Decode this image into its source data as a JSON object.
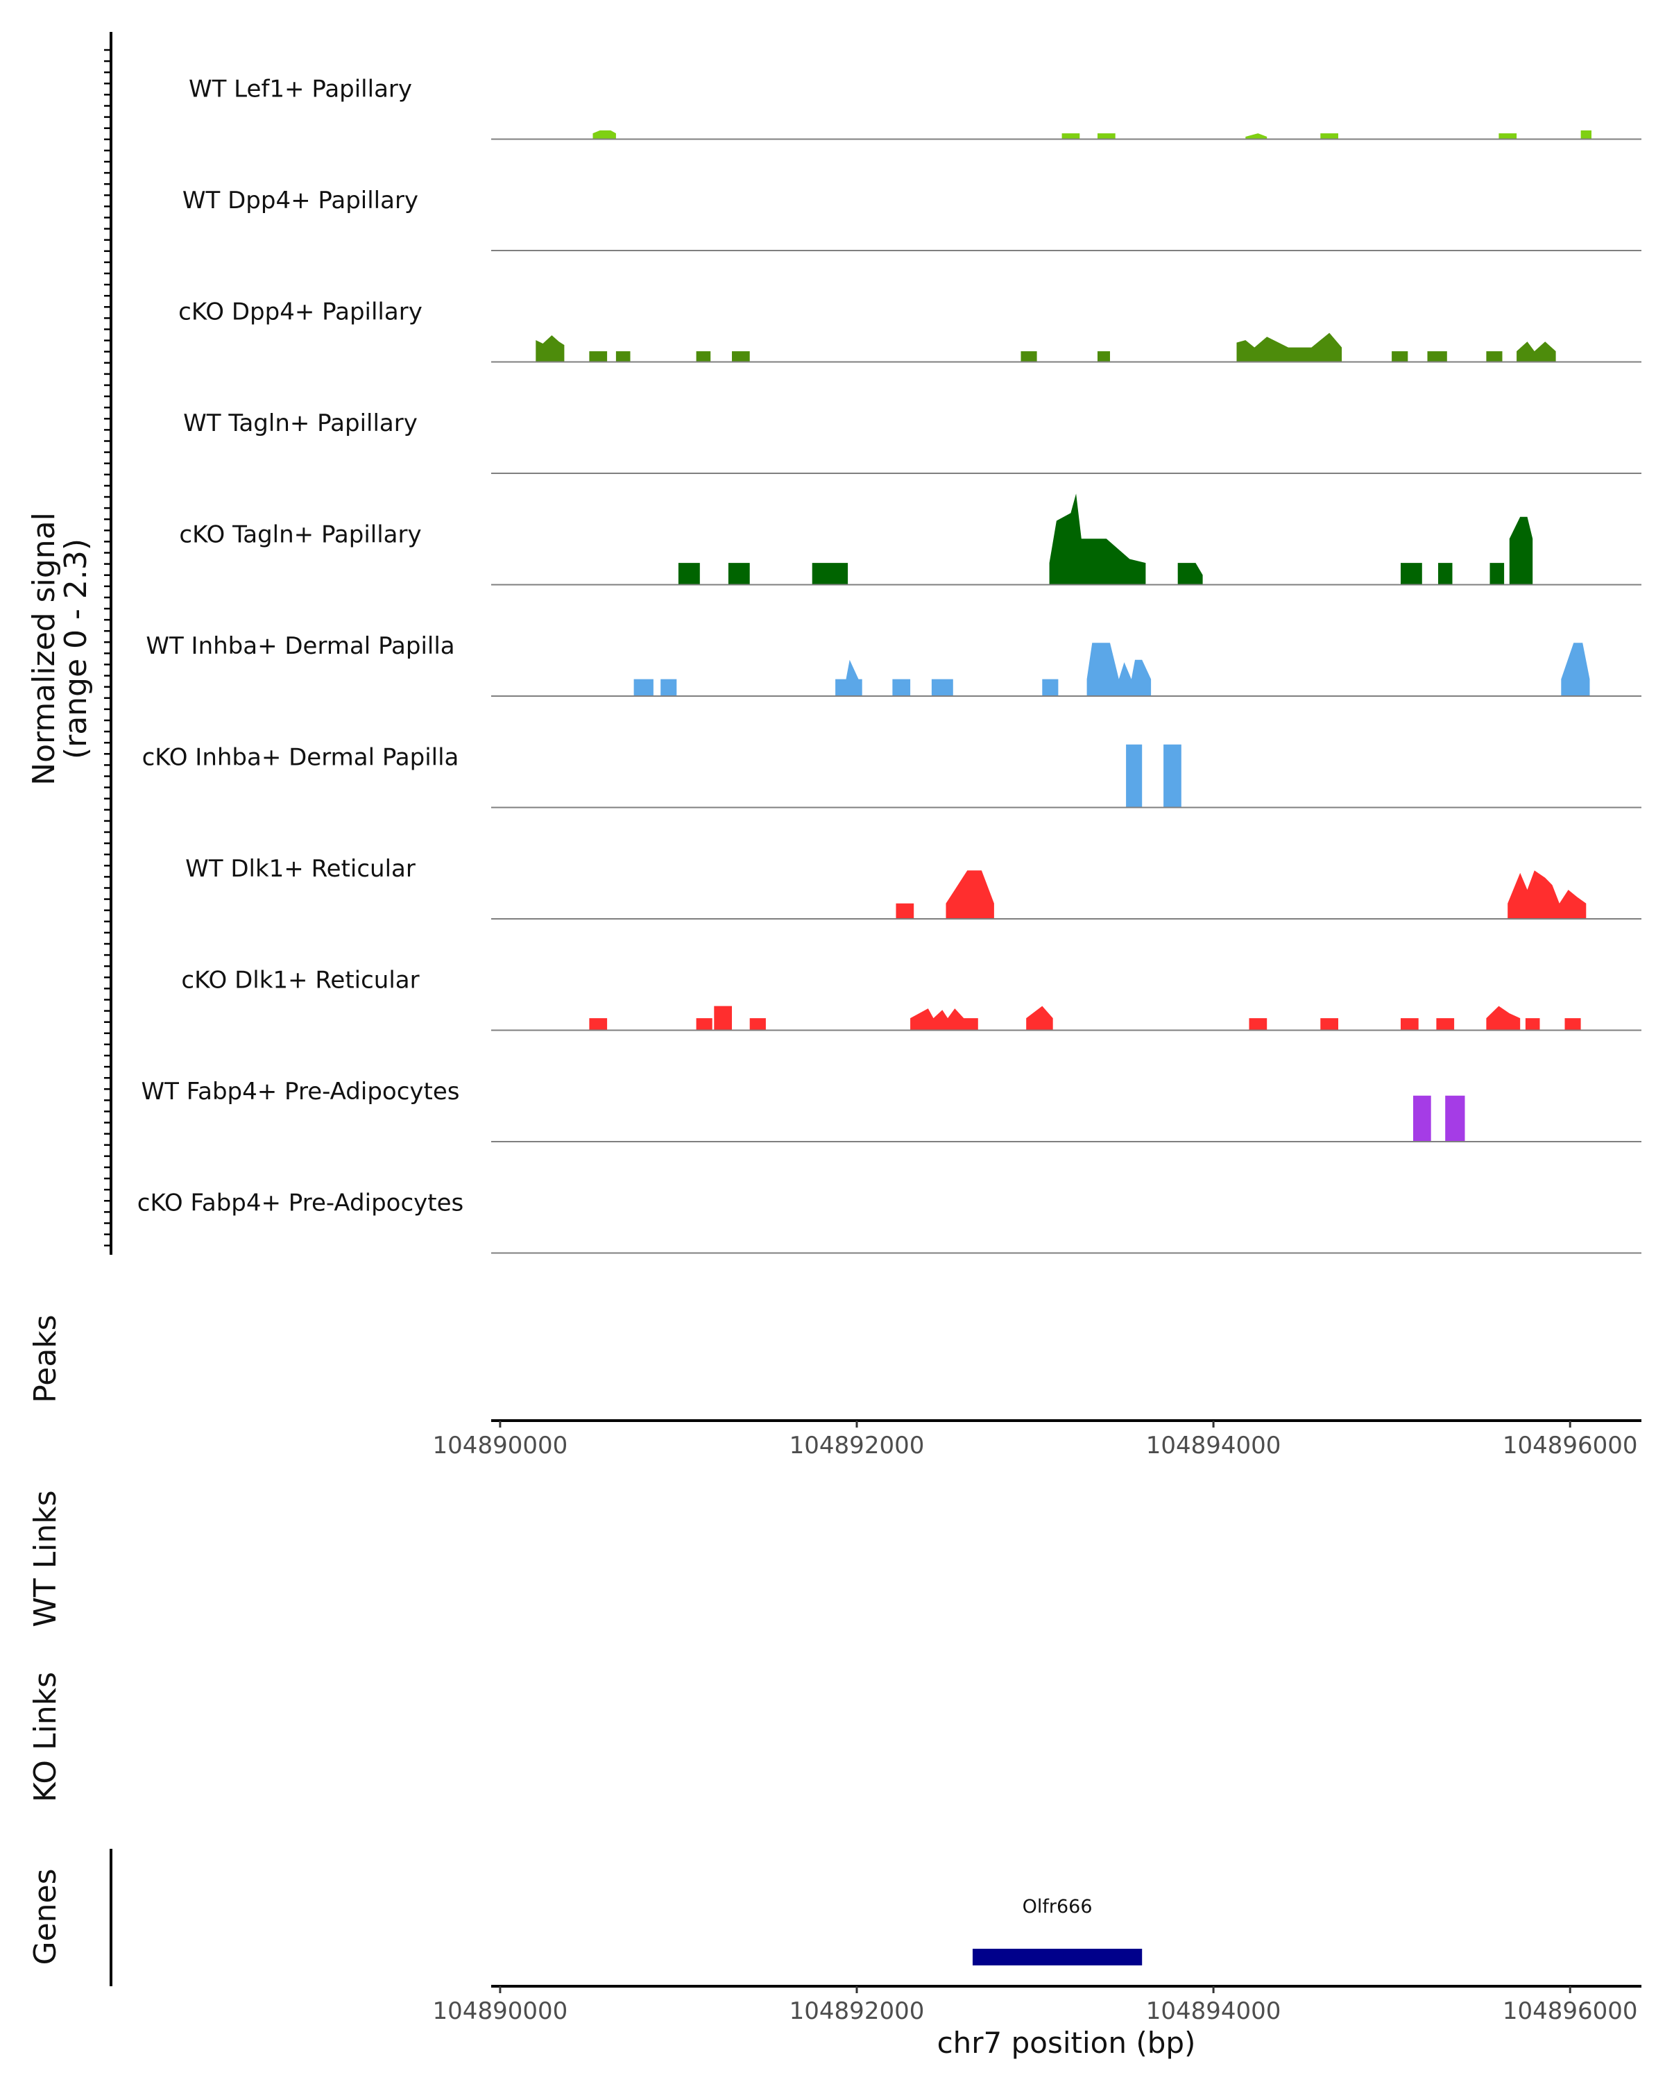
{
  "chart_data": {
    "type": "area",
    "title": "",
    "chromosome": "chr7",
    "xlabel": "chr7 position (bp)",
    "ylabel": "Normalized signal\n(range 0 - 2.3)",
    "ylabel_lines": [
      "Normalized signal",
      "(range 0 - 2.3)"
    ],
    "ylim": [
      0,
      2.3
    ],
    "xlim": [
      104889950,
      104896400
    ],
    "x_ticks": [
      104890000,
      104892000,
      104894000,
      104896000
    ],
    "x_tick_labels": [
      "104890000",
      "104892000",
      "104894000",
      "104896000"
    ],
    "track_titles": {
      "peaks": "Peaks",
      "wt_links": "WT Links",
      "ko_links": "KO Links",
      "genes": "Genes"
    },
    "genes": [
      {
        "name": "Olfr666",
        "start": 104892650,
        "end": 104893600,
        "strand": "-",
        "color": "#00008B"
      }
    ],
    "series": [
      {
        "name": "WT Lef1+ Papillary",
        "color": "#7FD012",
        "segments": [
          {
            "x": [
              104890520,
              104890560,
              104890620,
              104890650
            ],
            "y": [
              0.12,
              0.18,
              0.18,
              0.12
            ]
          },
          {
            "x": [
              104893150,
              104893250
            ],
            "y": [
              0.12,
              0.12
            ]
          },
          {
            "x": [
              104893350,
              104893450
            ],
            "y": [
              0.12,
              0.12
            ]
          },
          {
            "x": [
              104894180,
              104894250,
              104894300
            ],
            "y": [
              0.05,
              0.12,
              0.05
            ]
          },
          {
            "x": [
              104894600,
              104894700
            ],
            "y": [
              0.12,
              0.12
            ]
          },
          {
            "x": [
              104895600,
              104895700
            ],
            "y": [
              0.12,
              0.12
            ]
          },
          {
            "x": [
              104896060,
              104896120
            ],
            "y": [
              0.18,
              0.18
            ]
          }
        ]
      },
      {
        "name": "WT Dpp4+ Papillary",
        "color": "#5A9C11",
        "segments": []
      },
      {
        "name": "cKO Dpp4+ Papillary",
        "color": "#4D8C0B",
        "segments": [
          {
            "x": [
              104890200,
              104890240,
              104890290,
              104890330,
              104890360
            ],
            "y": [
              0.45,
              0.38,
              0.55,
              0.42,
              0.35
            ]
          },
          {
            "x": [
              104890500,
              104890600
            ],
            "y": [
              0.22,
              0.22
            ]
          },
          {
            "x": [
              104890650,
              104890730
            ],
            "y": [
              0.22,
              0.22
            ]
          },
          {
            "x": [
              104891100,
              104891180
            ],
            "y": [
              0.22,
              0.22
            ]
          },
          {
            "x": [
              104891300,
              104891400
            ],
            "y": [
              0.22,
              0.22
            ]
          },
          {
            "x": [
              104892920,
              104893010
            ],
            "y": [
              0.22,
              0.22
            ]
          },
          {
            "x": [
              104893350,
              104893420
            ],
            "y": [
              0.22,
              0.22
            ]
          },
          {
            "x": [
              104894130,
              104894180,
              104894230,
              104894300,
              104894420,
              104894550,
              104894650,
              104894720
            ],
            "y": [
              0.4,
              0.45,
              0.3,
              0.52,
              0.3,
              0.3,
              0.6,
              0.3
            ]
          },
          {
            "x": [
              104895000,
              104895090
            ],
            "y": [
              0.22,
              0.22
            ]
          },
          {
            "x": [
              104895200,
              104895310
            ],
            "y": [
              0.22,
              0.22
            ]
          },
          {
            "x": [
              104895530,
              104895620
            ],
            "y": [
              0.22,
              0.22
            ]
          },
          {
            "x": [
              104895700,
              104895760,
              104895800,
              104895860,
              104895920
            ],
            "y": [
              0.22,
              0.42,
              0.22,
              0.42,
              0.22
            ]
          }
        ]
      },
      {
        "name": "WT Tagln+ Papillary",
        "color": "#2E7D0A",
        "segments": []
      },
      {
        "name": "cKO Tagln+ Papillary",
        "color": "#006400",
        "segments": [
          {
            "x": [
              104891000,
              104891120
            ],
            "y": [
              0.45,
              0.45
            ]
          },
          {
            "x": [
              104891280,
              104891400
            ],
            "y": [
              0.45,
              0.45
            ]
          },
          {
            "x": [
              104891750,
              104891950
            ],
            "y": [
              0.45,
              0.45
            ]
          },
          {
            "x": [
              104893080,
              104893120,
              104893200,
              104893230,
              104893260,
              104893400,
              104893530,
              104893620
            ],
            "y": [
              0.45,
              1.32,
              1.48,
              1.88,
              0.95,
              0.95,
              0.53,
              0.45
            ]
          },
          {
            "x": [
              104893800,
              104893900,
              104893940
            ],
            "y": [
              0.45,
              0.45,
              0.2
            ]
          },
          {
            "x": [
              104895050,
              104895170
            ],
            "y": [
              0.45,
              0.45
            ]
          },
          {
            "x": [
              104895260,
              104895340
            ],
            "y": [
              0.45,
              0.45
            ]
          },
          {
            "x": [
              104895550,
              104895630
            ],
            "y": [
              0.45,
              0.45
            ]
          },
          {
            "x": [
              104895660,
              104895720,
              104895760,
              104895790
            ],
            "y": [
              0.95,
              1.4,
              1.4,
              0.95
            ]
          }
        ]
      },
      {
        "name": "WT Inhba+ Dermal Papilla",
        "color": "#5BA7E8",
        "segments": [
          {
            "x": [
              104890750,
              104890860
            ],
            "y": [
              0.35,
              0.35
            ]
          },
          {
            "x": [
              104890900,
              104890990
            ],
            "y": [
              0.35,
              0.35
            ]
          },
          {
            "x": [
              104891880,
              104891940,
              104891960,
              104892010,
              104892030
            ],
            "y": [
              0.35,
              0.35,
              0.75,
              0.35,
              0.35
            ]
          },
          {
            "x": [
              104892200,
              104892300
            ],
            "y": [
              0.35,
              0.35
            ]
          },
          {
            "x": [
              104892420,
              104892540
            ],
            "y": [
              0.35,
              0.35
            ]
          },
          {
            "x": [
              104893040,
              104893130
            ],
            "y": [
              0.35,
              0.35
            ]
          },
          {
            "x": [
              104893290,
              104893320,
              104893420,
              104893470,
              104893500,
              104893540,
              104893560,
              104893600,
              104893650
            ],
            "y": [
              0.35,
              1.1,
              1.1,
              0.35,
              0.7,
              0.35,
              0.75,
              0.75,
              0.35
            ]
          },
          {
            "x": [
              104895950,
              104896020,
              104896070,
              104896110
            ],
            "y": [
              0.35,
              1.1,
              1.1,
              0.35
            ]
          }
        ]
      },
      {
        "name": "cKO Inhba+ Dermal Papilla",
        "color": "#5BA7E8",
        "segments": [
          {
            "x": [
              104893510,
              104893600
            ],
            "y": [
              1.3,
              1.3
            ]
          },
          {
            "x": [
              104893720,
              104893820
            ],
            "y": [
              1.3,
              1.3
            ]
          }
        ]
      },
      {
        "name": "WT Dlk1+ Reticular",
        "color": "#FF2E2E",
        "segments": [
          {
            "x": [
              104892220,
              104892320
            ],
            "y": [
              0.32,
              0.32
            ]
          },
          {
            "x": [
              104892500,
              104892550,
              104892620,
              104892700,
              104892770
            ],
            "y": [
              0.32,
              0.6,
              1.0,
              1.0,
              0.32
            ]
          },
          {
            "x": [
              104895650,
              104895720,
              104895760,
              104895800,
              104895860,
              104895900,
              104895940,
              104895990,
              104896040,
              104896090
            ],
            "y": [
              0.32,
              0.95,
              0.6,
              1.0,
              0.85,
              0.7,
              0.32,
              0.6,
              0.45,
              0.32
            ]
          }
        ]
      },
      {
        "name": "cKO Dlk1+ Reticular",
        "color": "#FF2E2E",
        "segments": [
          {
            "x": [
              104890500,
              104890600
            ],
            "y": [
              0.25,
              0.25
            ]
          },
          {
            "x": [
              104891100,
              104891190
            ],
            "y": [
              0.25,
              0.25
            ]
          },
          {
            "x": [
              104891200,
              104891300
            ],
            "y": [
              0.5,
              0.5
            ]
          },
          {
            "x": [
              104891400,
              104891490
            ],
            "y": [
              0.25,
              0.25
            ]
          },
          {
            "x": [
              104892300,
              104892400,
              104892430,
              104892480,
              104892510,
              104892550,
              104892600,
              104892680
            ],
            "y": [
              0.25,
              0.45,
              0.25,
              0.42,
              0.25,
              0.45,
              0.25,
              0.25
            ]
          },
          {
            "x": [
              104892950,
              104893040,
              104893100
            ],
            "y": [
              0.25,
              0.5,
              0.25
            ]
          },
          {
            "x": [
              104894200,
              104894300
            ],
            "y": [
              0.25,
              0.25
            ]
          },
          {
            "x": [
              104894600,
              104894700
            ],
            "y": [
              0.25,
              0.25
            ]
          },
          {
            "x": [
              104895050,
              104895150
            ],
            "y": [
              0.25,
              0.25
            ]
          },
          {
            "x": [
              104895250,
              104895350
            ],
            "y": [
              0.25,
              0.25
            ]
          },
          {
            "x": [
              104895530,
              104895600,
              104895660,
              104895720
            ],
            "y": [
              0.25,
              0.5,
              0.35,
              0.25
            ]
          },
          {
            "x": [
              104895750,
              104895830
            ],
            "y": [
              0.25,
              0.25
            ]
          },
          {
            "x": [
              104895970,
              104896060
            ],
            "y": [
              0.25,
              0.25
            ]
          }
        ]
      },
      {
        "name": "WT Fabp4+ Pre-Adipocytes",
        "color": "#A53CE6",
        "segments": [
          {
            "x": [
              104895120,
              104895220
            ],
            "y": [
              0.95,
              0.95
            ]
          },
          {
            "x": [
              104895300,
              104895410
            ],
            "y": [
              0.95,
              0.95
            ]
          }
        ]
      },
      {
        "name": "cKO Fabp4+ Pre-Adipocytes",
        "color": "#A53CE6",
        "segments": []
      }
    ]
  }
}
